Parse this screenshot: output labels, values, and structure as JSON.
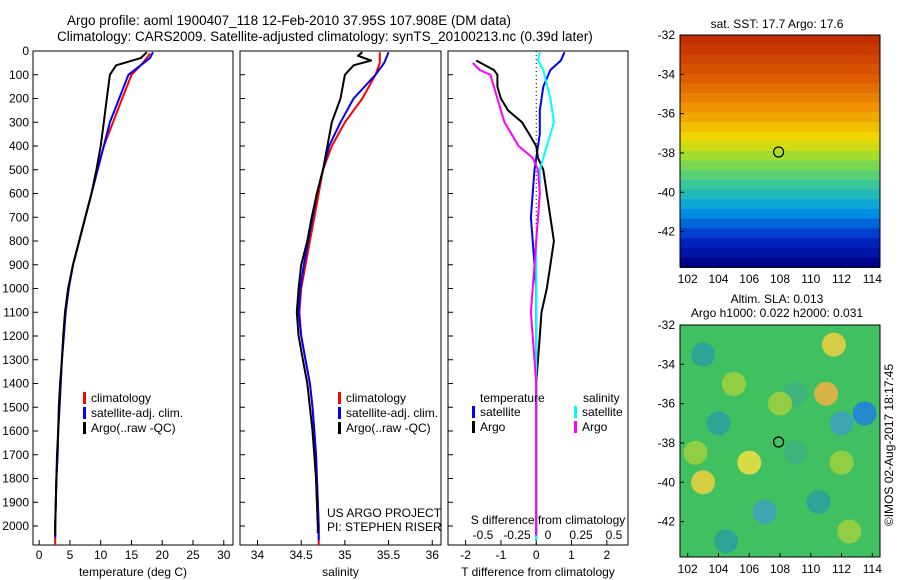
{
  "header": {
    "title1": "Argo profile: aoml 1900407_118 12-Feb-2010 37.95S 107.908E (DM data)",
    "title2": "Climatology: CARS2009. Satellite-adjusted climatology: synTS_20100213.nc (0.39d later)"
  },
  "colors": {
    "climatology": "#ff0000",
    "satellite": "#0000ff",
    "argo": "#000000",
    "argo_sal": "#ff00ff",
    "sat_sal": "#00ffff"
  },
  "chart_data": [
    {
      "type": "line",
      "id": "temperature",
      "xlabel": "temperature (deg C)",
      "ylabel": "",
      "xlim": [
        -1,
        31.5
      ],
      "ylim": [
        2080,
        0
      ],
      "xticks": [
        0,
        5,
        10,
        15,
        20,
        25,
        30
      ],
      "yticks": [
        0,
        100,
        200,
        300,
        400,
        500,
        600,
        700,
        800,
        900,
        1000,
        1100,
        1200,
        1300,
        1400,
        1500,
        1600,
        1700,
        1800,
        1900,
        2000
      ],
      "legend": {
        "placement": "lower-center",
        "entries": [
          "climatology",
          "satellite-adj. clim.",
          "Argo(..raw -QC)"
        ]
      },
      "series": [
        {
          "name": "climatology",
          "color": "#ff0000",
          "points": [
            [
              18,
              10
            ],
            [
              17.5,
              30
            ],
            [
              16.5,
              60
            ],
            [
              15,
              100
            ],
            [
              13.5,
              200
            ],
            [
              12,
              300
            ],
            [
              10.5,
              400
            ],
            [
              9.5,
              500
            ],
            [
              8.5,
              600
            ],
            [
              7.5,
              700
            ],
            [
              6.5,
              800
            ],
            [
              5.5,
              900
            ],
            [
              4.8,
              1000
            ],
            [
              4.3,
              1100
            ],
            [
              4,
              1200
            ],
            [
              3.7,
              1300
            ],
            [
              3.5,
              1400
            ],
            [
              3.3,
              1500
            ],
            [
              3.1,
              1600
            ],
            [
              3,
              1700
            ],
            [
              2.8,
              1800
            ],
            [
              2.7,
              1900
            ],
            [
              2.6,
              2000
            ],
            [
              2.6,
              2080
            ]
          ]
        },
        {
          "name": "satellite-adj. clim.",
          "color": "#0000ff",
          "points": [
            [
              18.5,
              5
            ],
            [
              18,
              30
            ],
            [
              16.5,
              60
            ],
            [
              14.5,
              100
            ],
            [
              13,
              200
            ],
            [
              11.5,
              300
            ],
            [
              10.5,
              400
            ],
            [
              9.5,
              500
            ],
            [
              8.5,
              600
            ],
            [
              7.5,
              700
            ],
            [
              6.5,
              800
            ],
            [
              5.5,
              900
            ],
            [
              4.8,
              1000
            ],
            [
              4.3,
              1100
            ],
            [
              4,
              1200
            ],
            [
              3.7,
              1300
            ],
            [
              3.5,
              1400
            ],
            [
              3.3,
              1500
            ],
            [
              3.1,
              1600
            ],
            [
              3,
              1700
            ],
            [
              2.8,
              1800
            ],
            [
              2.7,
              1900
            ],
            [
              2.6,
              2000
            ],
            [
              2.6,
              2050
            ]
          ]
        },
        {
          "name": "Argo(..raw -QC)",
          "color": "#000000",
          "points": [
            [
              17.5,
              5
            ],
            [
              16.5,
              30
            ],
            [
              12.5,
              60
            ],
            [
              11.5,
              100
            ],
            [
              11,
              200
            ],
            [
              10.5,
              300
            ],
            [
              10,
              400
            ],
            [
              9.3,
              500
            ],
            [
              8.5,
              600
            ],
            [
              7.5,
              700
            ],
            [
              6.5,
              800
            ],
            [
              5.5,
              900
            ],
            [
              4.7,
              1000
            ],
            [
              4.2,
              1100
            ],
            [
              3.9,
              1200
            ],
            [
              3.7,
              1300
            ],
            [
              3.4,
              1400
            ],
            [
              3.2,
              1500
            ],
            [
              3.1,
              1600
            ],
            [
              2.9,
              1700
            ],
            [
              2.8,
              1800
            ],
            [
              2.7,
              1900
            ],
            [
              2.6,
              2000
            ],
            [
              2.6,
              2040
            ]
          ]
        }
      ]
    },
    {
      "type": "line",
      "id": "salinity",
      "xlabel": "salinity",
      "ylabel": "",
      "xlim": [
        33.8,
        36.1
      ],
      "ylim": [
        2080,
        0
      ],
      "xticks": [
        34,
        34.5,
        35,
        35.5,
        36
      ],
      "legend": {
        "placement": "lower-right",
        "entries": [
          "climatology",
          "satellite-adj. clim.",
          "Argo(..raw -QC)"
        ]
      },
      "annotation": [
        "US ARGO PROJECT",
        "PI: STEPHEN RISER"
      ],
      "series": [
        {
          "name": "climatology",
          "color": "#ff0000",
          "points": [
            [
              35.4,
              5
            ],
            [
              35.4,
              50
            ],
            [
              35.35,
              100
            ],
            [
              35.2,
              200
            ],
            [
              35,
              300
            ],
            [
              34.85,
              400
            ],
            [
              34.75,
              500
            ],
            [
              34.7,
              600
            ],
            [
              34.65,
              700
            ],
            [
              34.6,
              800
            ],
            [
              34.55,
              900
            ],
            [
              34.5,
              1000
            ],
            [
              34.48,
              1100
            ],
            [
              34.5,
              1200
            ],
            [
              34.55,
              1300
            ],
            [
              34.6,
              1400
            ],
            [
              34.63,
              1500
            ],
            [
              34.65,
              1600
            ],
            [
              34.67,
              1700
            ],
            [
              34.68,
              1800
            ],
            [
              34.69,
              1900
            ],
            [
              34.7,
              2000
            ],
            [
              34.7,
              2080
            ]
          ]
        },
        {
          "name": "satellite-adj. clim.",
          "color": "#0000ff",
          "points": [
            [
              35.5,
              5
            ],
            [
              35.45,
              50
            ],
            [
              35.35,
              100
            ],
            [
              35.1,
              200
            ],
            [
              34.95,
              300
            ],
            [
              34.82,
              400
            ],
            [
              34.75,
              500
            ],
            [
              34.68,
              600
            ],
            [
              34.63,
              700
            ],
            [
              34.58,
              800
            ],
            [
              34.53,
              900
            ],
            [
              34.49,
              1000
            ],
            [
              34.47,
              1100
            ],
            [
              34.5,
              1200
            ],
            [
              34.55,
              1300
            ],
            [
              34.6,
              1400
            ],
            [
              34.63,
              1500
            ],
            [
              34.65,
              1600
            ],
            [
              34.67,
              1700
            ],
            [
              34.68,
              1800
            ],
            [
              34.69,
              1900
            ],
            [
              34.7,
              2000
            ],
            [
              34.7,
              2060
            ]
          ]
        },
        {
          "name": "Argo(..raw -QC)",
          "color": "#000000",
          "points": [
            [
              35.2,
              5
            ],
            [
              35.15,
              20
            ],
            [
              35.3,
              40
            ],
            [
              35.1,
              60
            ],
            [
              35,
              100
            ],
            [
              34.95,
              200
            ],
            [
              34.85,
              300
            ],
            [
              34.8,
              400
            ],
            [
              34.75,
              500
            ],
            [
              34.68,
              600
            ],
            [
              34.62,
              700
            ],
            [
              34.57,
              800
            ],
            [
              34.5,
              900
            ],
            [
              34.47,
              1000
            ],
            [
              34.45,
              1100
            ],
            [
              34.47,
              1200
            ],
            [
              34.52,
              1300
            ],
            [
              34.57,
              1400
            ],
            [
              34.6,
              1500
            ],
            [
              34.63,
              1600
            ],
            [
              34.65,
              1700
            ],
            [
              34.67,
              1800
            ],
            [
              34.68,
              1900
            ],
            [
              34.69,
              2000
            ],
            [
              34.69,
              2030
            ]
          ]
        }
      ]
    },
    {
      "type": "line",
      "id": "difference",
      "xlabel": "T difference from climatology",
      "top_axis_label": "S difference from climatology",
      "xlim": [
        -2.5,
        2.6
      ],
      "ylim": [
        2080,
        0
      ],
      "xticks": [
        -2,
        -1,
        0,
        1,
        2
      ],
      "s_ticks": [
        "-0.5",
        "-0.25",
        "0",
        "0.25",
        "0.5"
      ],
      "legend": {
        "placement": "lower-center",
        "temperature_heading": "temperature",
        "salinity_heading": "salinity",
        "entries": [
          "satellite",
          "Argo",
          "satellite",
          "Argo"
        ]
      },
      "series": [
        {
          "name": "temperature satellite",
          "color": "#0000ff",
          "points": [
            [
              0.8,
              5
            ],
            [
              0.7,
              40
            ],
            [
              0.4,
              80
            ],
            [
              0.2,
              150
            ],
            [
              0.1,
              250
            ],
            [
              0.1,
              350
            ],
            [
              0.05,
              400
            ],
            [
              -0.05,
              500
            ],
            [
              -0.1,
              600
            ],
            [
              -0.15,
              700
            ],
            [
              -0.1,
              800
            ],
            [
              -0.05,
              900
            ],
            [
              0,
              1000
            ],
            [
              0,
              1200
            ],
            [
              0,
              1400
            ],
            [
              0,
              1600
            ],
            [
              0,
              1800
            ],
            [
              0,
              2000
            ],
            [
              0,
              2060
            ]
          ]
        },
        {
          "name": "temperature Argo",
          "color": "#000000",
          "points": [
            [
              -1.7,
              40
            ],
            [
              -1.2,
              80
            ],
            [
              -1.1,
              100
            ],
            [
              -1.1,
              150
            ],
            [
              -1,
              200
            ],
            [
              -0.8,
              250
            ],
            [
              -0.4,
              300
            ],
            [
              -0.2,
              350
            ],
            [
              0,
              400
            ],
            [
              0.05,
              450
            ],
            [
              0.2,
              500
            ],
            [
              0.3,
              600
            ],
            [
              0.4,
              700
            ],
            [
              0.5,
              800
            ],
            [
              0.4,
              900
            ],
            [
              0.3,
              1000
            ],
            [
              0.15,
              1100
            ],
            [
              0.1,
              1200
            ],
            [
              0.05,
              1300
            ],
            [
              0,
              1400
            ],
            [
              0,
              1600
            ],
            [
              0,
              1800
            ],
            [
              0,
              2000
            ],
            [
              0,
              2040
            ]
          ]
        },
        {
          "name": "salinity satellite",
          "color": "#00ffff",
          "points": [
            [
              0.1,
              5
            ],
            [
              0.05,
              40
            ],
            [
              0.2,
              80
            ],
            [
              0.4,
              200
            ],
            [
              0.5,
              300
            ],
            [
              0.3,
              400
            ],
            [
              0.1,
              500
            ],
            [
              0.1,
              600
            ],
            [
              0.05,
              700
            ],
            [
              0,
              800
            ],
            [
              0,
              1000
            ],
            [
              0,
              1200
            ],
            [
              0,
              1400
            ],
            [
              0,
              1600
            ],
            [
              0,
              1800
            ],
            [
              0,
              2000
            ],
            [
              0,
              2060
            ]
          ]
        },
        {
          "name": "salinity Argo",
          "color": "#ff00ff",
          "points": [
            [
              -1.8,
              50
            ],
            [
              -1.6,
              80
            ],
            [
              -1.3,
              100
            ],
            [
              -1.1,
              200
            ],
            [
              -0.9,
              300
            ],
            [
              -0.5,
              400
            ],
            [
              -0.1,
              450
            ],
            [
              0.05,
              500
            ],
            [
              0.1,
              600
            ],
            [
              0.05,
              700
            ],
            [
              0,
              800
            ],
            [
              -0.05,
              900
            ],
            [
              -0.1,
              1000
            ],
            [
              -0.15,
              1100
            ],
            [
              -0.1,
              1200
            ],
            [
              -0.05,
              1300
            ],
            [
              0,
              1400
            ],
            [
              0,
              1600
            ],
            [
              0,
              1800
            ],
            [
              0,
              2000
            ],
            [
              0,
              2040
            ]
          ]
        }
      ]
    },
    {
      "type": "heatmap",
      "id": "sst_map",
      "title": "sat. SST: 17.7 Argo: 17.6",
      "xlim": [
        101.5,
        114.5
      ],
      "ylim": [
        -43.8,
        -32
      ],
      "xticks": [
        102,
        104,
        106,
        108,
        110,
        112,
        114
      ],
      "yticks": [
        -32,
        -34,
        -36,
        -38,
        -40,
        -42
      ],
      "argo_position": [
        107.908,
        -37.95
      ]
    },
    {
      "type": "heatmap",
      "id": "sla_map",
      "title": "Altim. SLA: 0.013",
      "title2": "Argo h1000: 0.022 h2000: 0.031",
      "xlim": [
        101.5,
        114.5
      ],
      "ylim": [
        -43.8,
        -32
      ],
      "xticks": [
        102,
        104,
        106,
        108,
        110,
        112,
        114
      ],
      "yticks": [
        -32,
        -34,
        -36,
        -38,
        -40,
        -42
      ],
      "argo_position": [
        107.908,
        -37.95
      ]
    }
  ],
  "credit": "©IMOS 02-Aug-2017 18:17:45"
}
